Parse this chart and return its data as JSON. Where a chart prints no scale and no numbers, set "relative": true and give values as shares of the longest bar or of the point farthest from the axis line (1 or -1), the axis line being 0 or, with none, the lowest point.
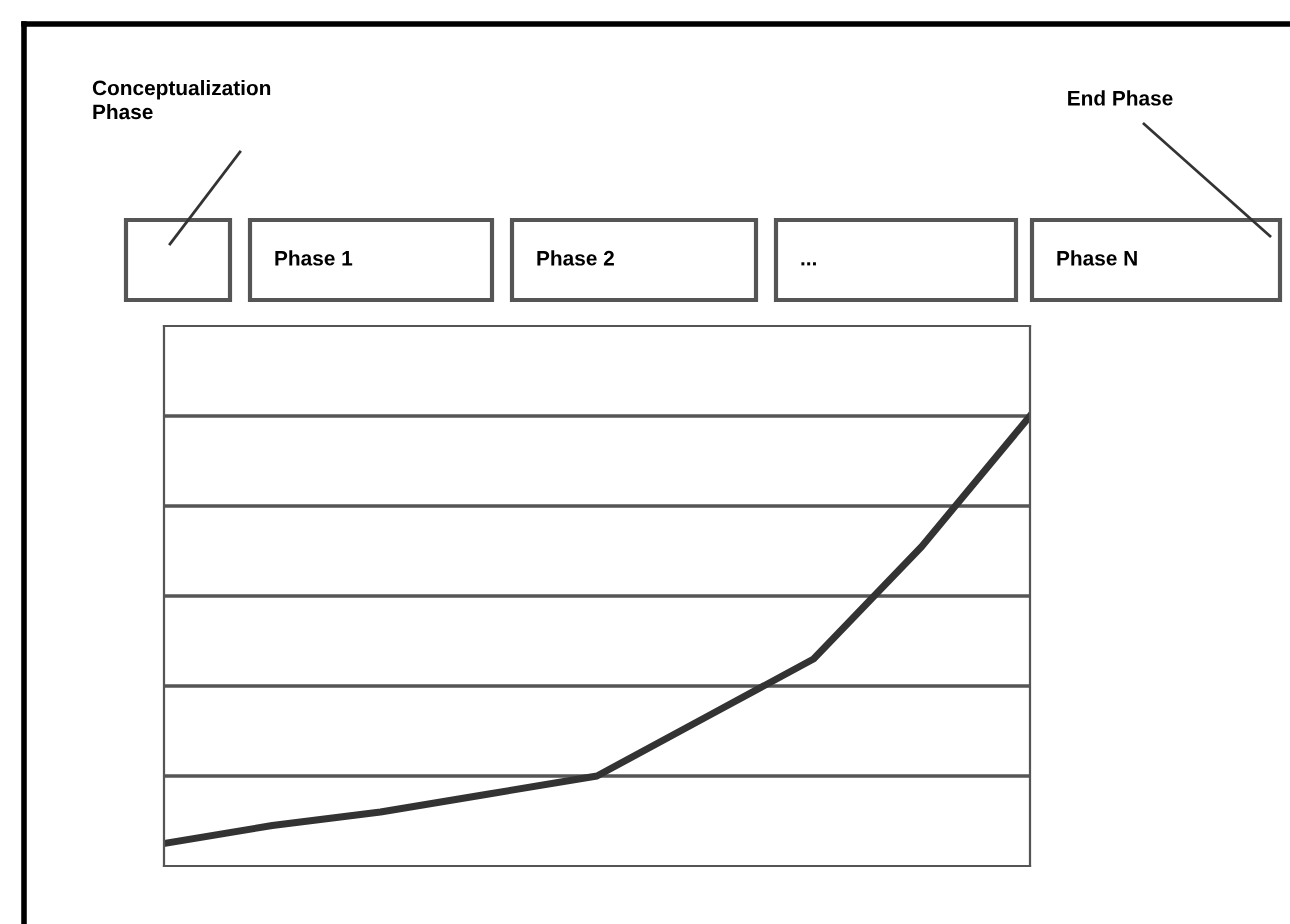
{
  "chart_data": {
    "type": "line",
    "relative": true,
    "categories": [
      null,
      null,
      null,
      null,
      null,
      null,
      null,
      null,
      null
    ],
    "series": [
      {
        "color": "#333333",
        "values": [
          0.05,
          0.09,
          0.12,
          0.16,
          0.2,
          0.33,
          0.46,
          0.71,
          1
        ]
      }
    ],
    "grid": "y",
    "marker": "none",
    "line_style": "solid",
    "annotations": [
      "Conceptualization\nPhase",
      "End Phase",
      "Phase 1",
      "Phase 2",
      "...",
      "Phase N"
    ]
  }
}
